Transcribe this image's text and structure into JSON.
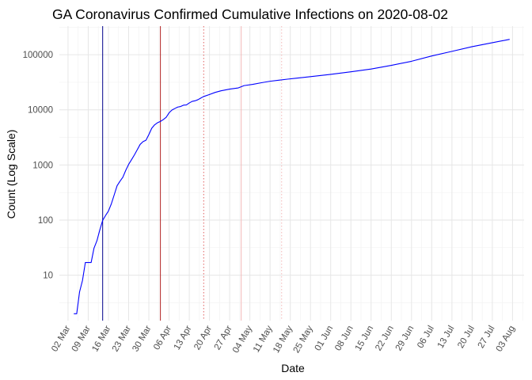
{
  "chart_data": {
    "type": "line",
    "title": "GA Coronavirus Confirmed Cumulative Infections on 2020-08-02",
    "xlabel": "Date",
    "ylabel": "Count (Log Scale)",
    "y_scale": "log10",
    "ylim": [
      1.5,
      330000
    ],
    "xlim": [
      "2020-02-28",
      "2020-08-07"
    ],
    "grid": true,
    "legend": "none",
    "x_ticks": [
      {
        "date": "2020-03-02",
        "label": "02 Mar"
      },
      {
        "date": "2020-03-09",
        "label": "09 Mar"
      },
      {
        "date": "2020-03-16",
        "label": "16 Mar"
      },
      {
        "date": "2020-03-23",
        "label": "23 Mar"
      },
      {
        "date": "2020-03-30",
        "label": "30 Mar"
      },
      {
        "date": "2020-04-06",
        "label": "06 Apr"
      },
      {
        "date": "2020-04-13",
        "label": "13 Apr"
      },
      {
        "date": "2020-04-20",
        "label": "20 Apr"
      },
      {
        "date": "2020-04-27",
        "label": "27 Apr"
      },
      {
        "date": "2020-05-04",
        "label": "04 May"
      },
      {
        "date": "2020-05-11",
        "label": "11 May"
      },
      {
        "date": "2020-05-18",
        "label": "18 May"
      },
      {
        "date": "2020-05-25",
        "label": "25 May"
      },
      {
        "date": "2020-06-01",
        "label": "01 Jun"
      },
      {
        "date": "2020-06-08",
        "label": "08 Jun"
      },
      {
        "date": "2020-06-15",
        "label": "15 Jun"
      },
      {
        "date": "2020-06-22",
        "label": "22 Jun"
      },
      {
        "date": "2020-06-29",
        "label": "29 Jun"
      },
      {
        "date": "2020-07-06",
        "label": "06 Jul"
      },
      {
        "date": "2020-07-13",
        "label": "13 Jul"
      },
      {
        "date": "2020-07-20",
        "label": "20 Jul"
      },
      {
        "date": "2020-07-27",
        "label": "27 Jul"
      },
      {
        "date": "2020-08-03",
        "label": "03 Aug"
      }
    ],
    "y_ticks": [
      {
        "value": 10,
        "label": "10"
      },
      {
        "value": 100,
        "label": "100"
      },
      {
        "value": 1000,
        "label": "1000"
      },
      {
        "value": 10000,
        "label": "10000"
      },
      {
        "value": 100000,
        "label": "100000"
      }
    ],
    "series": [
      {
        "color": "#0000ff",
        "points": [
          [
            "2020-03-04",
            2
          ],
          [
            "2020-03-05",
            2
          ],
          [
            "2020-03-06",
            5
          ],
          [
            "2020-03-07",
            8
          ],
          [
            "2020-03-08",
            17
          ],
          [
            "2020-03-09",
            17
          ],
          [
            "2020-03-10",
            17
          ],
          [
            "2020-03-11",
            31
          ],
          [
            "2020-03-12",
            42
          ],
          [
            "2020-03-13",
            66
          ],
          [
            "2020-03-14",
            99
          ],
          [
            "2020-03-15",
            121
          ],
          [
            "2020-03-16",
            146
          ],
          [
            "2020-03-17",
            197
          ],
          [
            "2020-03-18",
            287
          ],
          [
            "2020-03-19",
            420
          ],
          [
            "2020-03-20",
            507
          ],
          [
            "2020-03-21",
            600
          ],
          [
            "2020-03-22",
            800
          ],
          [
            "2020-03-23",
            1026
          ],
          [
            "2020-03-24",
            1247
          ],
          [
            "2020-03-25",
            1525
          ],
          [
            "2020-03-26",
            1897
          ],
          [
            "2020-03-27",
            2366
          ],
          [
            "2020-03-28",
            2651
          ],
          [
            "2020-03-29",
            2808
          ],
          [
            "2020-03-30",
            3558
          ],
          [
            "2020-03-31",
            4638
          ],
          [
            "2020-04-01",
            5348
          ],
          [
            "2020-04-02",
            5831
          ],
          [
            "2020-04-03",
            6160
          ],
          [
            "2020-04-04",
            6647
          ],
          [
            "2020-04-05",
            7314
          ],
          [
            "2020-04-06",
            8818
          ],
          [
            "2020-04-07",
            9901
          ],
          [
            "2020-04-08",
            10566
          ],
          [
            "2020-04-09",
            11226
          ],
          [
            "2020-04-10",
            11483
          ],
          [
            "2020-04-11",
            12159
          ],
          [
            "2020-04-12",
            12261
          ],
          [
            "2020-04-13",
            13315
          ],
          [
            "2020-04-14",
            14223
          ],
          [
            "2020-04-15",
            14578
          ],
          [
            "2020-04-16",
            15260
          ],
          [
            "2020-04-17",
            16368
          ],
          [
            "2020-04-18",
            17432
          ],
          [
            "2020-04-20",
            18947
          ],
          [
            "2020-04-22",
            20740
          ],
          [
            "2020-04-24",
            22147
          ],
          [
            "2020-04-27",
            23775
          ],
          [
            "2020-04-30",
            25000
          ],
          [
            "2020-05-02",
            27500
          ],
          [
            "2020-05-05",
            29000
          ],
          [
            "2020-05-08",
            31000
          ],
          [
            "2020-05-11",
            33000
          ],
          [
            "2020-05-14",
            34500
          ],
          [
            "2020-05-17",
            36000
          ],
          [
            "2020-05-20",
            37500
          ],
          [
            "2020-05-25",
            40000
          ],
          [
            "2020-06-01",
            44000
          ],
          [
            "2020-06-08",
            49000
          ],
          [
            "2020-06-15",
            55000
          ],
          [
            "2020-06-22",
            64000
          ],
          [
            "2020-06-29",
            76000
          ],
          [
            "2020-07-06",
            95000
          ],
          [
            "2020-07-13",
            115000
          ],
          [
            "2020-07-20",
            140000
          ],
          [
            "2020-07-27",
            165000
          ],
          [
            "2020-08-02",
            190000
          ]
        ]
      }
    ],
    "reference_lines": [
      {
        "date": "2020-03-14",
        "color": "#00008b",
        "style": "solid"
      },
      {
        "date": "2020-04-03",
        "color": "#b22222",
        "style": "solid"
      },
      {
        "date": "2020-04-18",
        "color": "#e06060",
        "style": "dotted"
      },
      {
        "date": "2020-05-01",
        "color": "#f4b8b8",
        "style": "solid"
      },
      {
        "date": "2020-05-15",
        "color": "#f4b8b8",
        "style": "dotted"
      }
    ]
  }
}
